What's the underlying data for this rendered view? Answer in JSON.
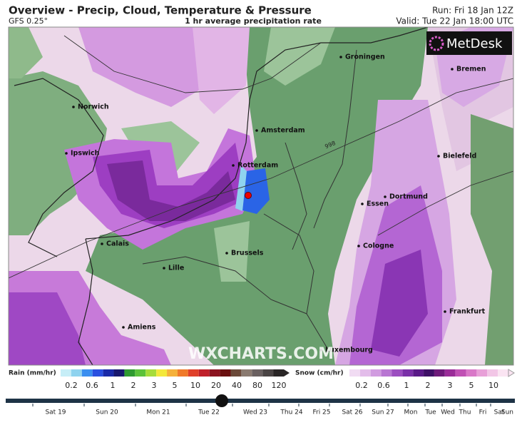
{
  "header": {
    "title": "Overview - Precip, Cloud, Temperature & Pressure",
    "model": "GFS 0.25°",
    "subtitle": "1 hr average precipitation rate",
    "run": "Run: Fri 18 Jan 12Z",
    "valid": "Valid: Tue 22 Jan 18:00 UTC"
  },
  "logo": "MetDesk",
  "cities": [
    "Groningen",
    "Bremen",
    "Norwich",
    "Amsterdam",
    "Ipswich",
    "Bielefeld",
    "Rotterdam",
    "Dortmund",
    "Essen",
    "Calais",
    "Cologne",
    "Brussels",
    "Lille",
    "Frankfurt",
    "Amiens",
    "Luxembourg"
  ],
  "isobar_label": "998",
  "watermark": "WXCHARTS.COM",
  "rain_legend": {
    "title": "Rain (mm/hr)",
    "ticks": [
      "0.2",
      "0.6",
      "1",
      "2",
      "3",
      "5",
      "10",
      "20",
      "40",
      "80",
      "120"
    ]
  },
  "snow_legend": {
    "title": "Snow (cm/hr)",
    "ticks": [
      "0.2",
      "0.6",
      "1",
      "2",
      "3",
      "5",
      "10"
    ]
  },
  "timeline": [
    "Sat 19",
    "Sun 20",
    "Mon 21",
    "Tue 22",
    "Wed 23",
    "Thu 24",
    "Fri 25",
    "Sat 26",
    "Sun 27",
    "Mon",
    "Tue",
    "Wed",
    "Thu",
    "Fri",
    "Sat",
    "Sun"
  ]
}
